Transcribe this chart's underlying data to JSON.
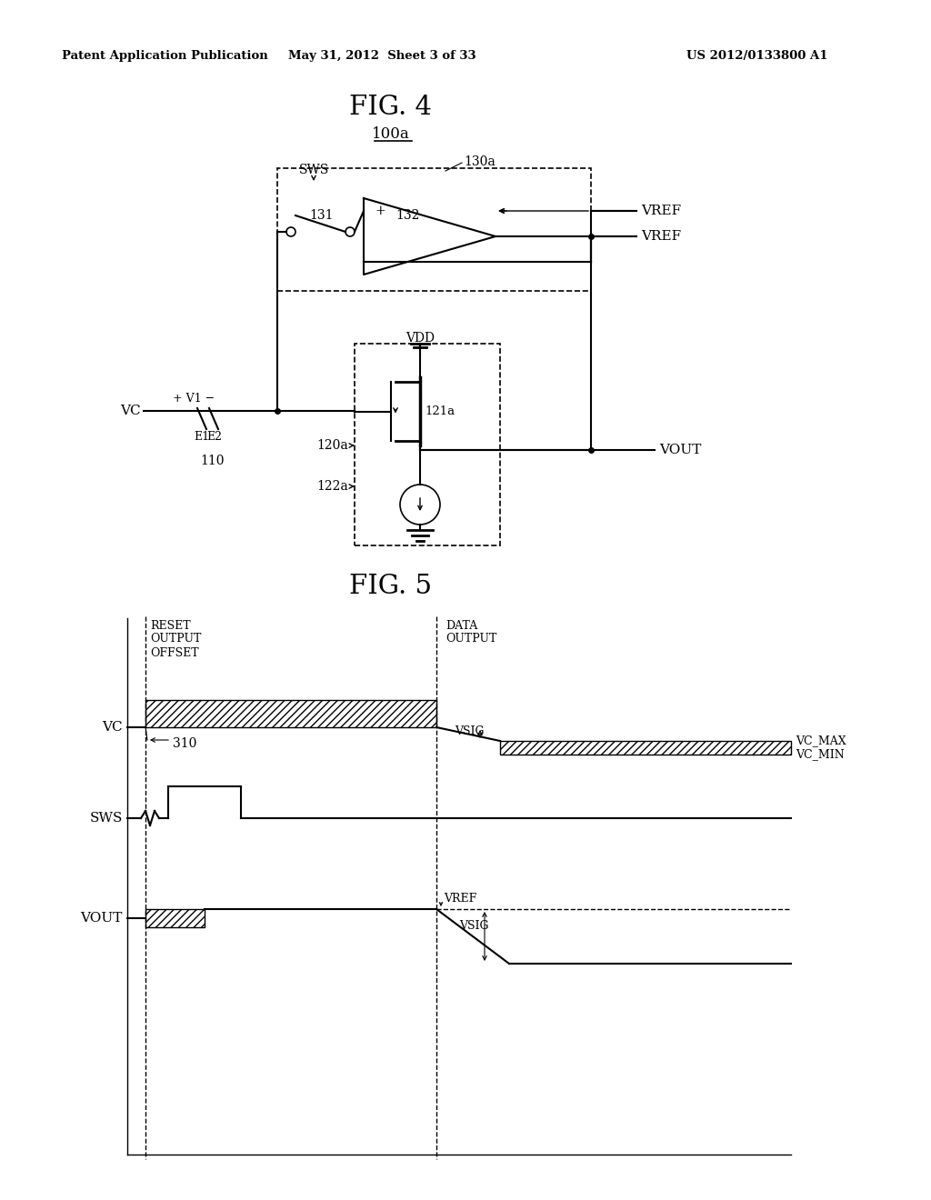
{
  "fig_title": "FIG. 4",
  "fig_subtitle": "100a",
  "fig5_title": "FIG. 5",
  "header_left": "Patent Application Publication",
  "header_center": "May 31, 2012  Sheet 3 of 33",
  "header_right": "US 2012/0133800 A1",
  "bg_color": "#ffffff",
  "line_color": "#000000"
}
